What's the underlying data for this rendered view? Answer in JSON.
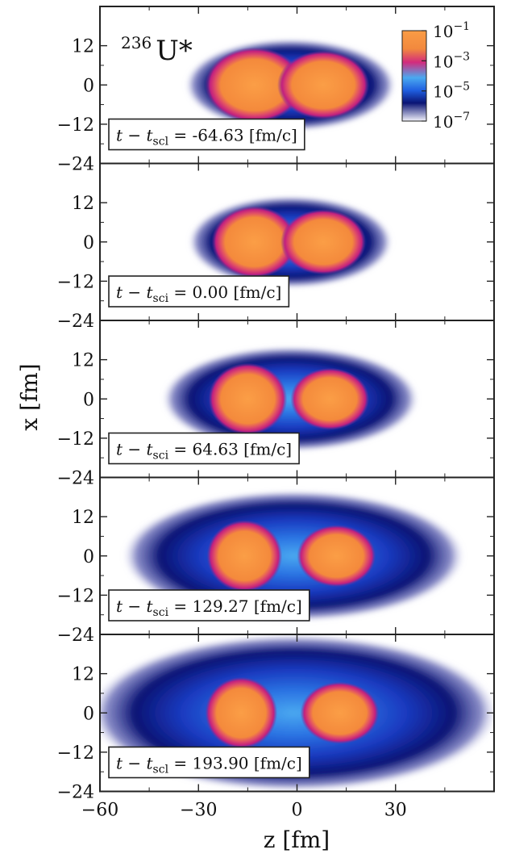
{
  "chart_data": {
    "type": "heatmap",
    "nucleus": {
      "mass_number": "236",
      "symbol": "U*"
    },
    "xlabel": "z [fm]",
    "ylabel": "x [fm]",
    "xlim": [
      -60,
      60
    ],
    "ylim": [
      -24,
      24
    ],
    "x_ticks": [
      -60,
      -30,
      0,
      30
    ],
    "x_tick_labels": [
      "−60",
      "−30",
      "0",
      "30"
    ],
    "y_ticks": [
      12,
      0,
      -12,
      -24
    ],
    "y_tick_labels": [
      "12",
      "0",
      "−12",
      "−24"
    ],
    "colorbar": {
      "scale": "log",
      "range": [
        1e-07,
        0.1
      ],
      "ticks": [
        {
          "base": "10",
          "exp": "−1"
        },
        {
          "base": "10",
          "exp": "−3"
        },
        {
          "base": "10",
          "exp": "−5"
        },
        {
          "base": "10",
          "exp": "−7"
        }
      ],
      "colors": [
        "#f3f3fb",
        "#0b1474",
        "#1f5fe0",
        "#4aa9f0",
        "#d22b7d",
        "#f2893e",
        "#fa9c45"
      ]
    },
    "panels": [
      {
        "time_prefix": "t − t",
        "time_sub": "scl",
        "time_value": "-64.63",
        "unit": "[fm/c]",
        "fragments": [
          {
            "z": -13,
            "x": 0,
            "rz": 12,
            "rx": 8.5
          },
          {
            "z": 8,
            "x": 0,
            "rz": 11,
            "rx": 7.5
          }
        ],
        "halo": {
          "z": -2,
          "rz": 32,
          "rx": 14
        }
      },
      {
        "time_prefix": "t − t",
        "time_sub": "sci",
        "time_value": "0.00",
        "unit": "[fm/c]",
        "fragments": [
          {
            "z": -13,
            "x": 0,
            "rz": 10,
            "rx": 8
          },
          {
            "z": 8,
            "x": 0,
            "rz": 10,
            "rx": 7
          }
        ],
        "halo": {
          "z": -2,
          "rz": 31,
          "rx": 14
        }
      },
      {
        "time_prefix": "t − t",
        "time_sub": "sci",
        "time_value": "64.63",
        "unit": "[fm/c]",
        "fragments": [
          {
            "z": -15,
            "x": 0,
            "rz": 9,
            "rx": 8
          },
          {
            "z": 10,
            "x": 0,
            "rz": 9,
            "rx": 6.5
          }
        ],
        "halo": {
          "z": -2,
          "rz": 39,
          "rx": 16
        }
      },
      {
        "time_prefix": "t − t",
        "time_sub": "sci",
        "time_value": "129.27",
        "unit": "[fm/c]",
        "fragments": [
          {
            "z": -16,
            "x": 0,
            "rz": 8.5,
            "rx": 8
          },
          {
            "z": 12,
            "x": 0,
            "rz": 9,
            "rx": 6.5
          }
        ],
        "halo": {
          "z": -1,
          "rz": 52,
          "rx": 20
        }
      },
      {
        "time_prefix": "t − t",
        "time_sub": "scl",
        "time_value": "193.90",
        "unit": "[fm/c]",
        "fragments": [
          {
            "z": -17,
            "x": 0,
            "rz": 8,
            "rx": 8
          },
          {
            "z": 13,
            "x": 0,
            "rz": 9,
            "rx": 6.5
          }
        ],
        "halo": {
          "z": -1,
          "rz": 62,
          "rx": 24
        }
      }
    ]
  }
}
